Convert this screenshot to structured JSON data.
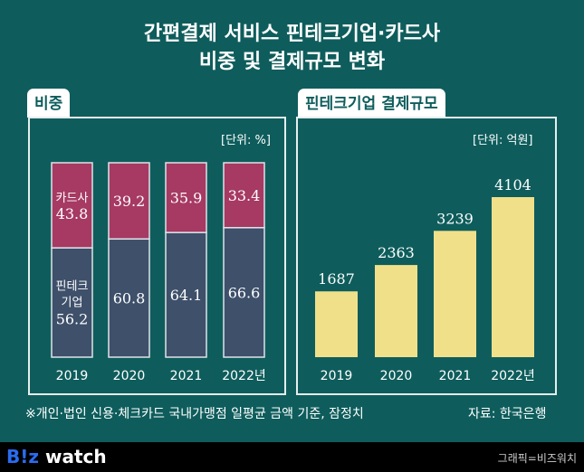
{
  "title_line1": "간편결제 서비스 핀테크기업·카드사",
  "title_line2": "비중 및 결제규모 변화",
  "colors": {
    "background": "#0e5d5c",
    "card": "#a63a62",
    "fintech": "#3e506a",
    "volume": "#f1e08a"
  },
  "chart_data": [
    {
      "type": "bar",
      "stacked": true,
      "title": "비중",
      "unit": "[단위: %]",
      "categories": [
        "2019",
        "2020",
        "2021",
        "2022년"
      ],
      "series": [
        {
          "name": "카드사",
          "values": [
            43.8,
            39.2,
            35.9,
            33.4
          ]
        },
        {
          "name": "핀테크기업",
          "values": [
            56.2,
            60.8,
            64.1,
            66.6
          ]
        }
      ],
      "ylim": [
        0,
        100
      ],
      "grid": false
    },
    {
      "type": "bar",
      "title": "핀테크기업 결제규모",
      "unit": "[단위: 억원]",
      "categories": [
        "2019",
        "2020",
        "2021",
        "2022년"
      ],
      "values": [
        1687,
        2363,
        3239,
        4104
      ],
      "ylim": [
        0,
        5000
      ],
      "grid": false
    }
  ],
  "labels": {
    "card_name": "카드사",
    "fintech_name_1": "핀테크",
    "fintech_name_2": "기업"
  },
  "note": "※개인·법인 신용·체크카드 국내가맹점 일평균 금액 기준, 잠정치",
  "source": "자료: 한국은행",
  "footer": {
    "logo_b": "B!z",
    "logo_w": " watch",
    "credit": "그래픽=비즈워치"
  }
}
